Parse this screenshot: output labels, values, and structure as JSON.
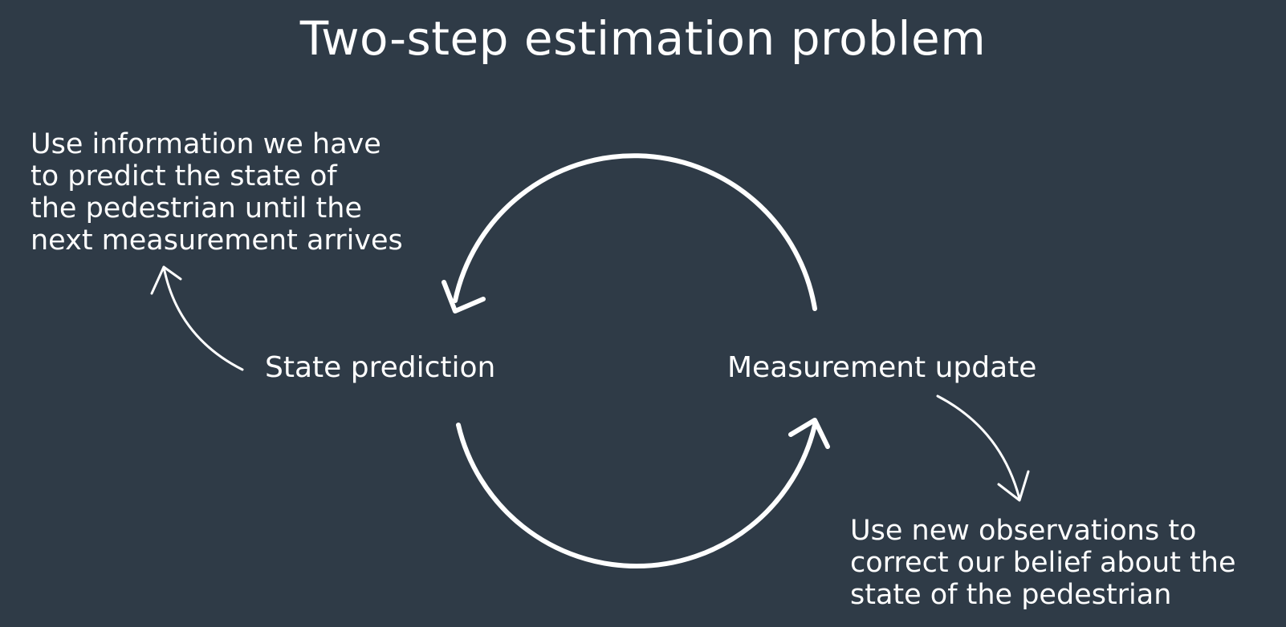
{
  "title": "Two-step estimation problem",
  "steps": {
    "predict": {
      "label": "State prediction",
      "description_lines": [
        "Use information we have",
        "to predict the state of",
        "the pedestrian until the",
        "next measurement arrives"
      ]
    },
    "update": {
      "label": "Measurement update",
      "description_lines": [
        "Use new observations to",
        "correct our belief about the",
        "state of the pedestrian"
      ]
    }
  },
  "colors": {
    "background": "#2f3b47",
    "foreground": "#ffffff"
  }
}
